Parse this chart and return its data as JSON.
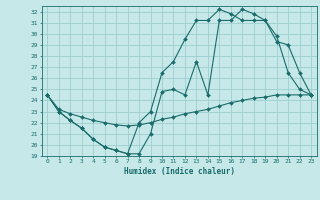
{
  "title": "",
  "xlabel": "Humidex (Indice chaleur)",
  "bg_color": "#c6e8e8",
  "grid_color": "#9ecece",
  "line_color": "#1a6b6b",
  "xlim": [
    -0.5,
    23.5
  ],
  "ylim": [
    19,
    32.5
  ],
  "xticks": [
    0,
    1,
    2,
    3,
    4,
    5,
    6,
    7,
    8,
    9,
    10,
    11,
    12,
    13,
    14,
    15,
    16,
    17,
    18,
    19,
    20,
    21,
    22,
    23
  ],
  "yticks": [
    19,
    20,
    21,
    22,
    23,
    24,
    25,
    26,
    27,
    28,
    29,
    30,
    31,
    32
  ],
  "line1_x": [
    0,
    1,
    2,
    3,
    4,
    5,
    6,
    7,
    8,
    9,
    10,
    11,
    12,
    13,
    14,
    15,
    16,
    17,
    18,
    19,
    20,
    21,
    22,
    23
  ],
  "line1_y": [
    24.5,
    23.0,
    22.2,
    21.5,
    20.5,
    19.8,
    19.5,
    19.2,
    19.2,
    21.0,
    24.8,
    25.0,
    24.5,
    27.5,
    24.5,
    31.2,
    31.2,
    32.2,
    31.8,
    31.2,
    29.3,
    29.0,
    26.5,
    24.5
  ],
  "line2_x": [
    0,
    1,
    2,
    3,
    4,
    5,
    6,
    7,
    8,
    9,
    10,
    11,
    12,
    13,
    14,
    15,
    16,
    17,
    18,
    19,
    20,
    21,
    22,
    23
  ],
  "line2_y": [
    24.5,
    23.0,
    22.2,
    21.5,
    20.5,
    19.8,
    19.5,
    19.2,
    22.0,
    23.0,
    26.5,
    27.5,
    29.5,
    31.2,
    31.2,
    32.2,
    31.8,
    31.2,
    31.2,
    31.2,
    29.8,
    26.5,
    25.0,
    24.5
  ],
  "line3_x": [
    0,
    1,
    2,
    3,
    4,
    5,
    6,
    7,
    8,
    9,
    10,
    11,
    12,
    13,
    14,
    15,
    16,
    17,
    18,
    19,
    20,
    21,
    22,
    23
  ],
  "line3_y": [
    24.5,
    23.2,
    22.8,
    22.5,
    22.2,
    22.0,
    21.8,
    21.7,
    21.8,
    22.0,
    22.3,
    22.5,
    22.8,
    23.0,
    23.2,
    23.5,
    23.8,
    24.0,
    24.2,
    24.3,
    24.5,
    24.5,
    24.5,
    24.5
  ]
}
